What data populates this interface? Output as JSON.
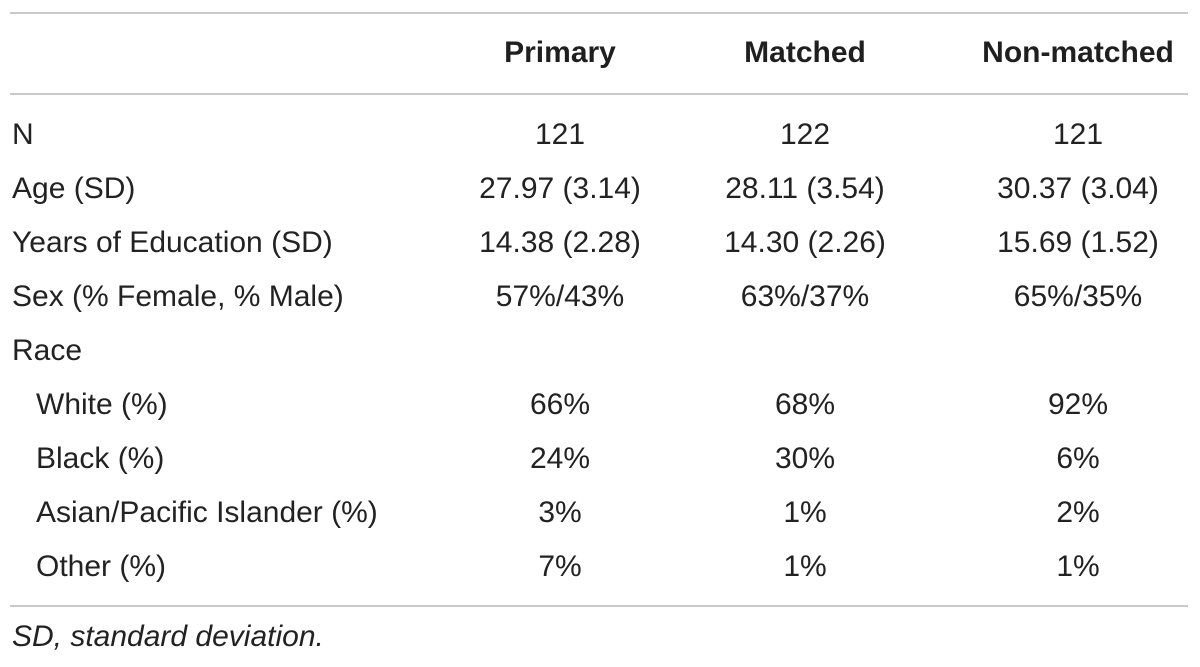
{
  "table": {
    "headers": {
      "primary": "Primary",
      "matched": "Matched",
      "non_matched": "Non-matched"
    },
    "rows": [
      {
        "label": "N",
        "indent": false,
        "primary": "121",
        "matched": "122",
        "non_matched": "121"
      },
      {
        "label": "Age (SD)",
        "indent": false,
        "primary": "27.97 (3.14)",
        "matched": "28.11 (3.54)",
        "non_matched": "30.37 (3.04)"
      },
      {
        "label": "Years of Education (SD)",
        "indent": false,
        "primary": "14.38 (2.28)",
        "matched": "14.30 (2.26)",
        "non_matched": "15.69 (1.52)"
      },
      {
        "label": "Sex (% Female, % Male)",
        "indent": false,
        "primary": "57%/43%",
        "matched": "63%/37%",
        "non_matched": "65%/35%"
      },
      {
        "label": "Race",
        "indent": false,
        "primary": "",
        "matched": "",
        "non_matched": ""
      },
      {
        "label": "White (%)",
        "indent": true,
        "primary": "66%",
        "matched": "68%",
        "non_matched": "92%"
      },
      {
        "label": "Black (%)",
        "indent": true,
        "primary": "24%",
        "matched": "30%",
        "non_matched": "6%"
      },
      {
        "label": "Asian/Pacific Islander (%)",
        "indent": true,
        "primary": "3%",
        "matched": "1%",
        "non_matched": "2%"
      },
      {
        "label": "Other (%)",
        "indent": true,
        "primary": "7%",
        "matched": "1%",
        "non_matched": "1%"
      }
    ],
    "footnote": "SD, standard deviation."
  }
}
